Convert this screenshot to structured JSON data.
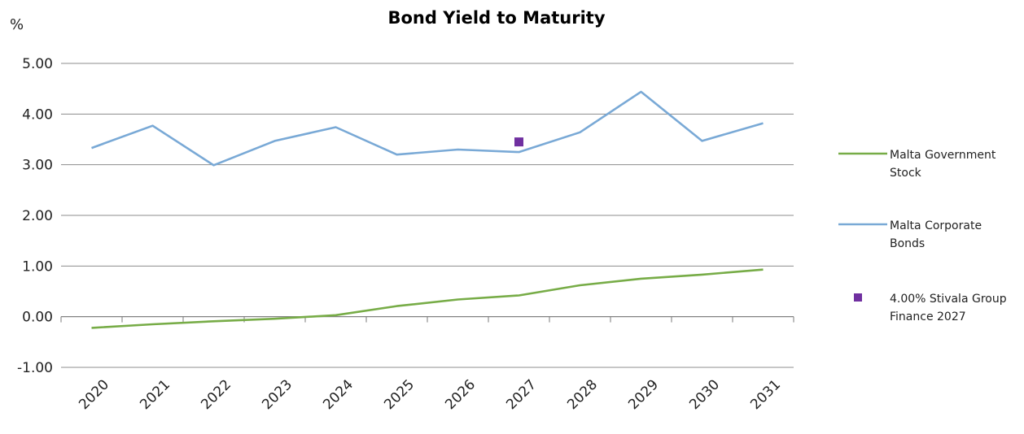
{
  "chart_data": {
    "type": "line",
    "title": "Bond Yield to Maturity",
    "ylabel": "%",
    "xlabel": "",
    "ylim": [
      -1,
      5
    ],
    "yticks": [
      "5.00",
      "4.00",
      "3.00",
      "2.00",
      "1.00",
      "0.00",
      "-1.00"
    ],
    "categories": [
      "2020",
      "2021",
      "2022",
      "2023",
      "2024",
      "2025",
      "2026",
      "2027",
      "2028",
      "2029",
      "2030",
      "2031"
    ],
    "grid": true,
    "legend_position": "right",
    "series": [
      {
        "name": "Malta Government Stock",
        "kind": "line",
        "color": "#77ac47",
        "values": [
          -0.22,
          -0.15,
          -0.09,
          -0.04,
          0.03,
          0.21,
          0.34,
          0.42,
          0.62,
          0.75,
          0.83,
          0.93
        ]
      },
      {
        "name": "Malta Corporate Bonds",
        "kind": "line",
        "color": "#79a9d6",
        "values": [
          3.33,
          3.77,
          2.99,
          3.47,
          3.74,
          3.2,
          3.3,
          3.25,
          3.64,
          4.44,
          3.47,
          3.82
        ]
      },
      {
        "name": "4.00% Stivala Group Finance 2027",
        "kind": "marker",
        "color": "#7030a0",
        "x": 7.5,
        "y": 3.45
      }
    ]
  }
}
